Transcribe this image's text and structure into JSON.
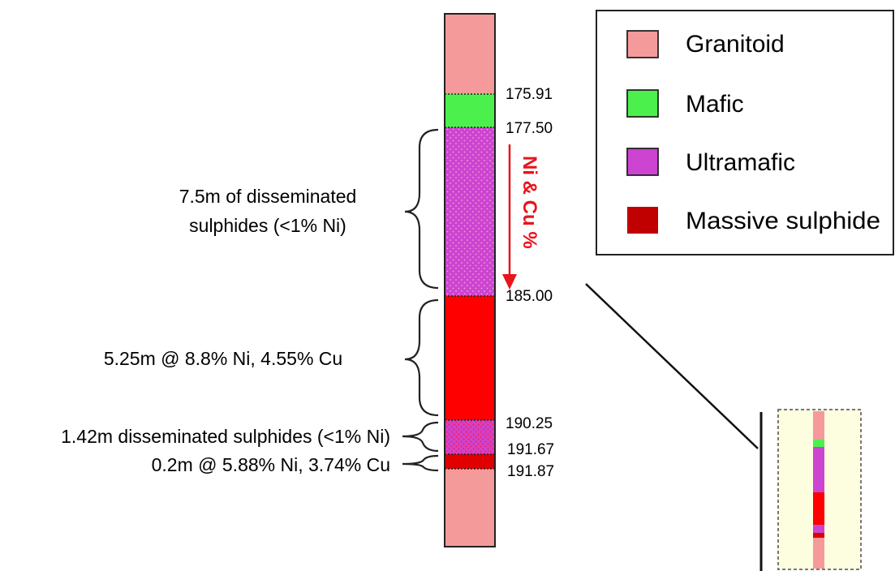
{
  "colors": {
    "granitoid": "#f59a9a",
    "mafic": "#4cf04c",
    "ultramafic": "#cc44d0",
    "massive_sulphide": "#c00000",
    "massive_fill": "#ff0000",
    "trend": "#e8141c",
    "inset_bg": "#fdfde0"
  },
  "depths": [
    "175.91",
    "177.50",
    "185.00",
    "190.25",
    "191.67",
    "191.87"
  ],
  "intervals": {
    "upper": {
      "line1": "7.5m of disseminated",
      "line2": "sulphides (<1% Ni)"
    },
    "massive": "5.25m @ 8.8% Ni, 4.55% Cu",
    "lower": "1.42m disseminated sulphides (<1% Ni)",
    "bottom": "0.2m @ 5.88% Ni, 3.74% Cu"
  },
  "trend_label": "Ni & Cu %",
  "legend": [
    {
      "label": "Granitoid",
      "color": "#f59a9a"
    },
    {
      "label": "Mafic",
      "color": "#4cf04c"
    },
    {
      "label": "Ultramafic",
      "color": "#cc44d0"
    },
    {
      "label": "Massive sulphide",
      "color": "#c00000"
    }
  ]
}
